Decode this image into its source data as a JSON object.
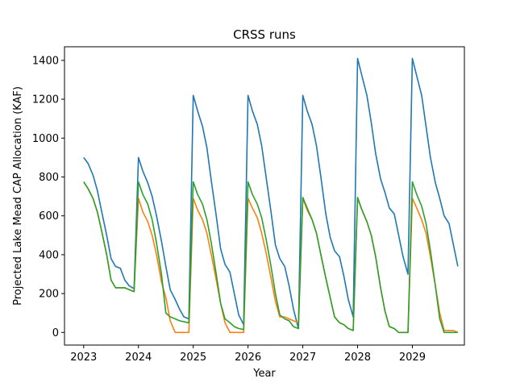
{
  "chart_data": {
    "type": "line",
    "title": "CRSS runs",
    "xlabel": "Year",
    "ylabel": "Projected Lake Mead CAP Allocation (KAF)",
    "xlim": [
      2022.65,
      2029.95
    ],
    "ylim": [
      -65,
      1470
    ],
    "xticks": [
      2023,
      2024,
      2025,
      2026,
      2027,
      2028,
      2029
    ],
    "xtick_labels": [
      "2023",
      "2024",
      "2025",
      "2026",
      "2027",
      "2028",
      "2029"
    ],
    "yticks": [
      0,
      200,
      400,
      600,
      800,
      1000,
      1200,
      1400
    ],
    "ytick_labels": [
      "0",
      "200",
      "400",
      "600",
      "800",
      "1000",
      "1200",
      "1400"
    ],
    "grid": false,
    "series": [
      {
        "color": "#1f77b4",
        "x": [
          2023.0,
          2023.08,
          2023.17,
          2023.25,
          2023.33,
          2023.42,
          2023.5,
          2023.58,
          2023.67,
          2023.75,
          2023.83,
          2023.92,
          2024.0,
          2024.08,
          2024.17,
          2024.25,
          2024.33,
          2024.42,
          2024.5,
          2024.58,
          2024.67,
          2024.75,
          2024.83,
          2024.92,
          2025.0,
          2025.08,
          2025.17,
          2025.25,
          2025.33,
          2025.42,
          2025.5,
          2025.58,
          2025.67,
          2025.75,
          2025.83,
          2025.92,
          2026.0,
          2026.08,
          2026.17,
          2026.25,
          2026.33,
          2026.42,
          2026.5,
          2026.58,
          2026.67,
          2026.75,
          2026.83,
          2026.92,
          2027.0,
          2027.08,
          2027.17,
          2027.25,
          2027.33,
          2027.42,
          2027.5,
          2027.58,
          2027.67,
          2027.75,
          2027.83,
          2027.92,
          2028.0,
          2028.08,
          2028.17,
          2028.25,
          2028.33,
          2028.42,
          2028.5,
          2028.58,
          2028.67,
          2028.75,
          2028.83,
          2028.92,
          2029.0,
          2029.08,
          2029.17,
          2029.25,
          2029.33,
          2029.42,
          2029.5,
          2029.58,
          2029.67,
          2029.75,
          2029.83
        ],
        "y": [
          900,
          870,
          810,
          730,
          620,
          500,
          380,
          340,
          330,
          270,
          240,
          225,
          900,
          830,
          770,
          700,
          600,
          470,
          340,
          220,
          170,
          120,
          80,
          70,
          1220,
          1140,
          1060,
          950,
          780,
          600,
          430,
          350,
          310,
          200,
          90,
          40,
          1220,
          1140,
          1070,
          960,
          800,
          620,
          450,
          380,
          340,
          240,
          120,
          20,
          1220,
          1140,
          1070,
          960,
          800,
          610,
          490,
          420,
          390,
          290,
          170,
          80,
          1410,
          1320,
          1220,
          1080,
          920,
          790,
          720,
          640,
          610,
          500,
          390,
          300,
          1410,
          1320,
          1220,
          1060,
          900,
          770,
          690,
          600,
          560,
          450,
          340
        ]
      },
      {
        "color": "#ff7f0e",
        "x": [
          2023.0,
          2023.08,
          2023.17,
          2023.25,
          2023.33,
          2023.42,
          2023.5,
          2023.58,
          2023.67,
          2023.75,
          2023.83,
          2023.92,
          2024.0,
          2024.08,
          2024.17,
          2024.25,
          2024.33,
          2024.42,
          2024.5,
          2024.58,
          2024.67,
          2024.75,
          2024.83,
          2024.92,
          2025.0,
          2025.08,
          2025.17,
          2025.25,
          2025.33,
          2025.42,
          2025.5,
          2025.58,
          2025.67,
          2025.75,
          2025.83,
          2025.92,
          2026.0,
          2026.08,
          2026.17,
          2026.25,
          2026.33,
          2026.42,
          2026.5,
          2026.58,
          2026.67,
          2026.75,
          2026.83,
          2026.92,
          2027.0,
          2027.08,
          2027.17,
          2027.25,
          2027.33,
          2027.42,
          2027.5,
          2027.58,
          2027.67,
          2027.75,
          2027.83,
          2027.92,
          2028.0,
          2028.08,
          2028.17,
          2028.25,
          2028.33,
          2028.42,
          2028.5,
          2028.58,
          2028.67,
          2028.75,
          2028.83,
          2028.92,
          2029.0,
          2029.08,
          2029.17,
          2029.25,
          2029.33,
          2029.42,
          2029.5,
          2029.58,
          2029.67,
          2029.75,
          2029.83
        ],
        "y": [
          775,
          740,
          690,
          620,
          520,
          400,
          270,
          230,
          230,
          230,
          220,
          210,
          690,
          620,
          570,
          500,
          400,
          260,
          180,
          60,
          0,
          0,
          0,
          0,
          690,
          630,
          580,
          510,
          400,
          270,
          150,
          50,
          0,
          0,
          0,
          0,
          690,
          640,
          590,
          510,
          410,
          280,
          160,
          80,
          80,
          70,
          60,
          50,
          690,
          630,
          580,
          510,
          400,
          280,
          180,
          80,
          50,
          40,
          20,
          10,
          690,
          630,
          570,
          500,
          390,
          230,
          110,
          30,
          20,
          0,
          0,
          0,
          690,
          640,
          580,
          510,
          390,
          240,
          100,
          10,
          10,
          10,
          0
        ]
      },
      {
        "color": "#2ca02c",
        "x": [
          2023.0,
          2023.08,
          2023.17,
          2023.25,
          2023.33,
          2023.42,
          2023.5,
          2023.58,
          2023.67,
          2023.75,
          2023.83,
          2023.92,
          2024.0,
          2024.08,
          2024.17,
          2024.25,
          2024.33,
          2024.42,
          2024.5,
          2024.58,
          2024.67,
          2024.75,
          2024.83,
          2024.92,
          2025.0,
          2025.08,
          2025.17,
          2025.25,
          2025.33,
          2025.42,
          2025.5,
          2025.58,
          2025.67,
          2025.75,
          2025.83,
          2025.92,
          2026.0,
          2026.08,
          2026.17,
          2026.25,
          2026.33,
          2026.42,
          2026.5,
          2026.58,
          2026.67,
          2026.75,
          2026.83,
          2026.92,
          2027.0,
          2027.08,
          2027.17,
          2027.25,
          2027.33,
          2027.42,
          2027.5,
          2027.58,
          2027.67,
          2027.75,
          2027.83,
          2027.92,
          2028.0,
          2028.08,
          2028.17,
          2028.25,
          2028.33,
          2028.42,
          2028.5,
          2028.58,
          2028.67,
          2028.75,
          2028.83,
          2028.92,
          2029.0,
          2029.08,
          2029.17,
          2029.25,
          2029.33,
          2029.42,
          2029.5,
          2029.58,
          2029.67,
          2029.75,
          2029.83
        ],
        "y": [
          775,
          740,
          690,
          620,
          520,
          400,
          270,
          230,
          230,
          230,
          220,
          210,
          775,
          710,
          660,
          580,
          460,
          300,
          100,
          80,
          70,
          60,
          55,
          50,
          775,
          710,
          660,
          580,
          460,
          300,
          150,
          70,
          50,
          30,
          20,
          15,
          775,
          710,
          660,
          590,
          480,
          340,
          200,
          90,
          70,
          60,
          30,
          20,
          695,
          640,
          580,
          510,
          400,
          280,
          180,
          80,
          50,
          40,
          20,
          10,
          695,
          630,
          570,
          500,
          390,
          230,
          110,
          30,
          20,
          0,
          0,
          0,
          775,
          710,
          650,
          560,
          420,
          240,
          70,
          0,
          0,
          0,
          0
        ]
      }
    ]
  }
}
